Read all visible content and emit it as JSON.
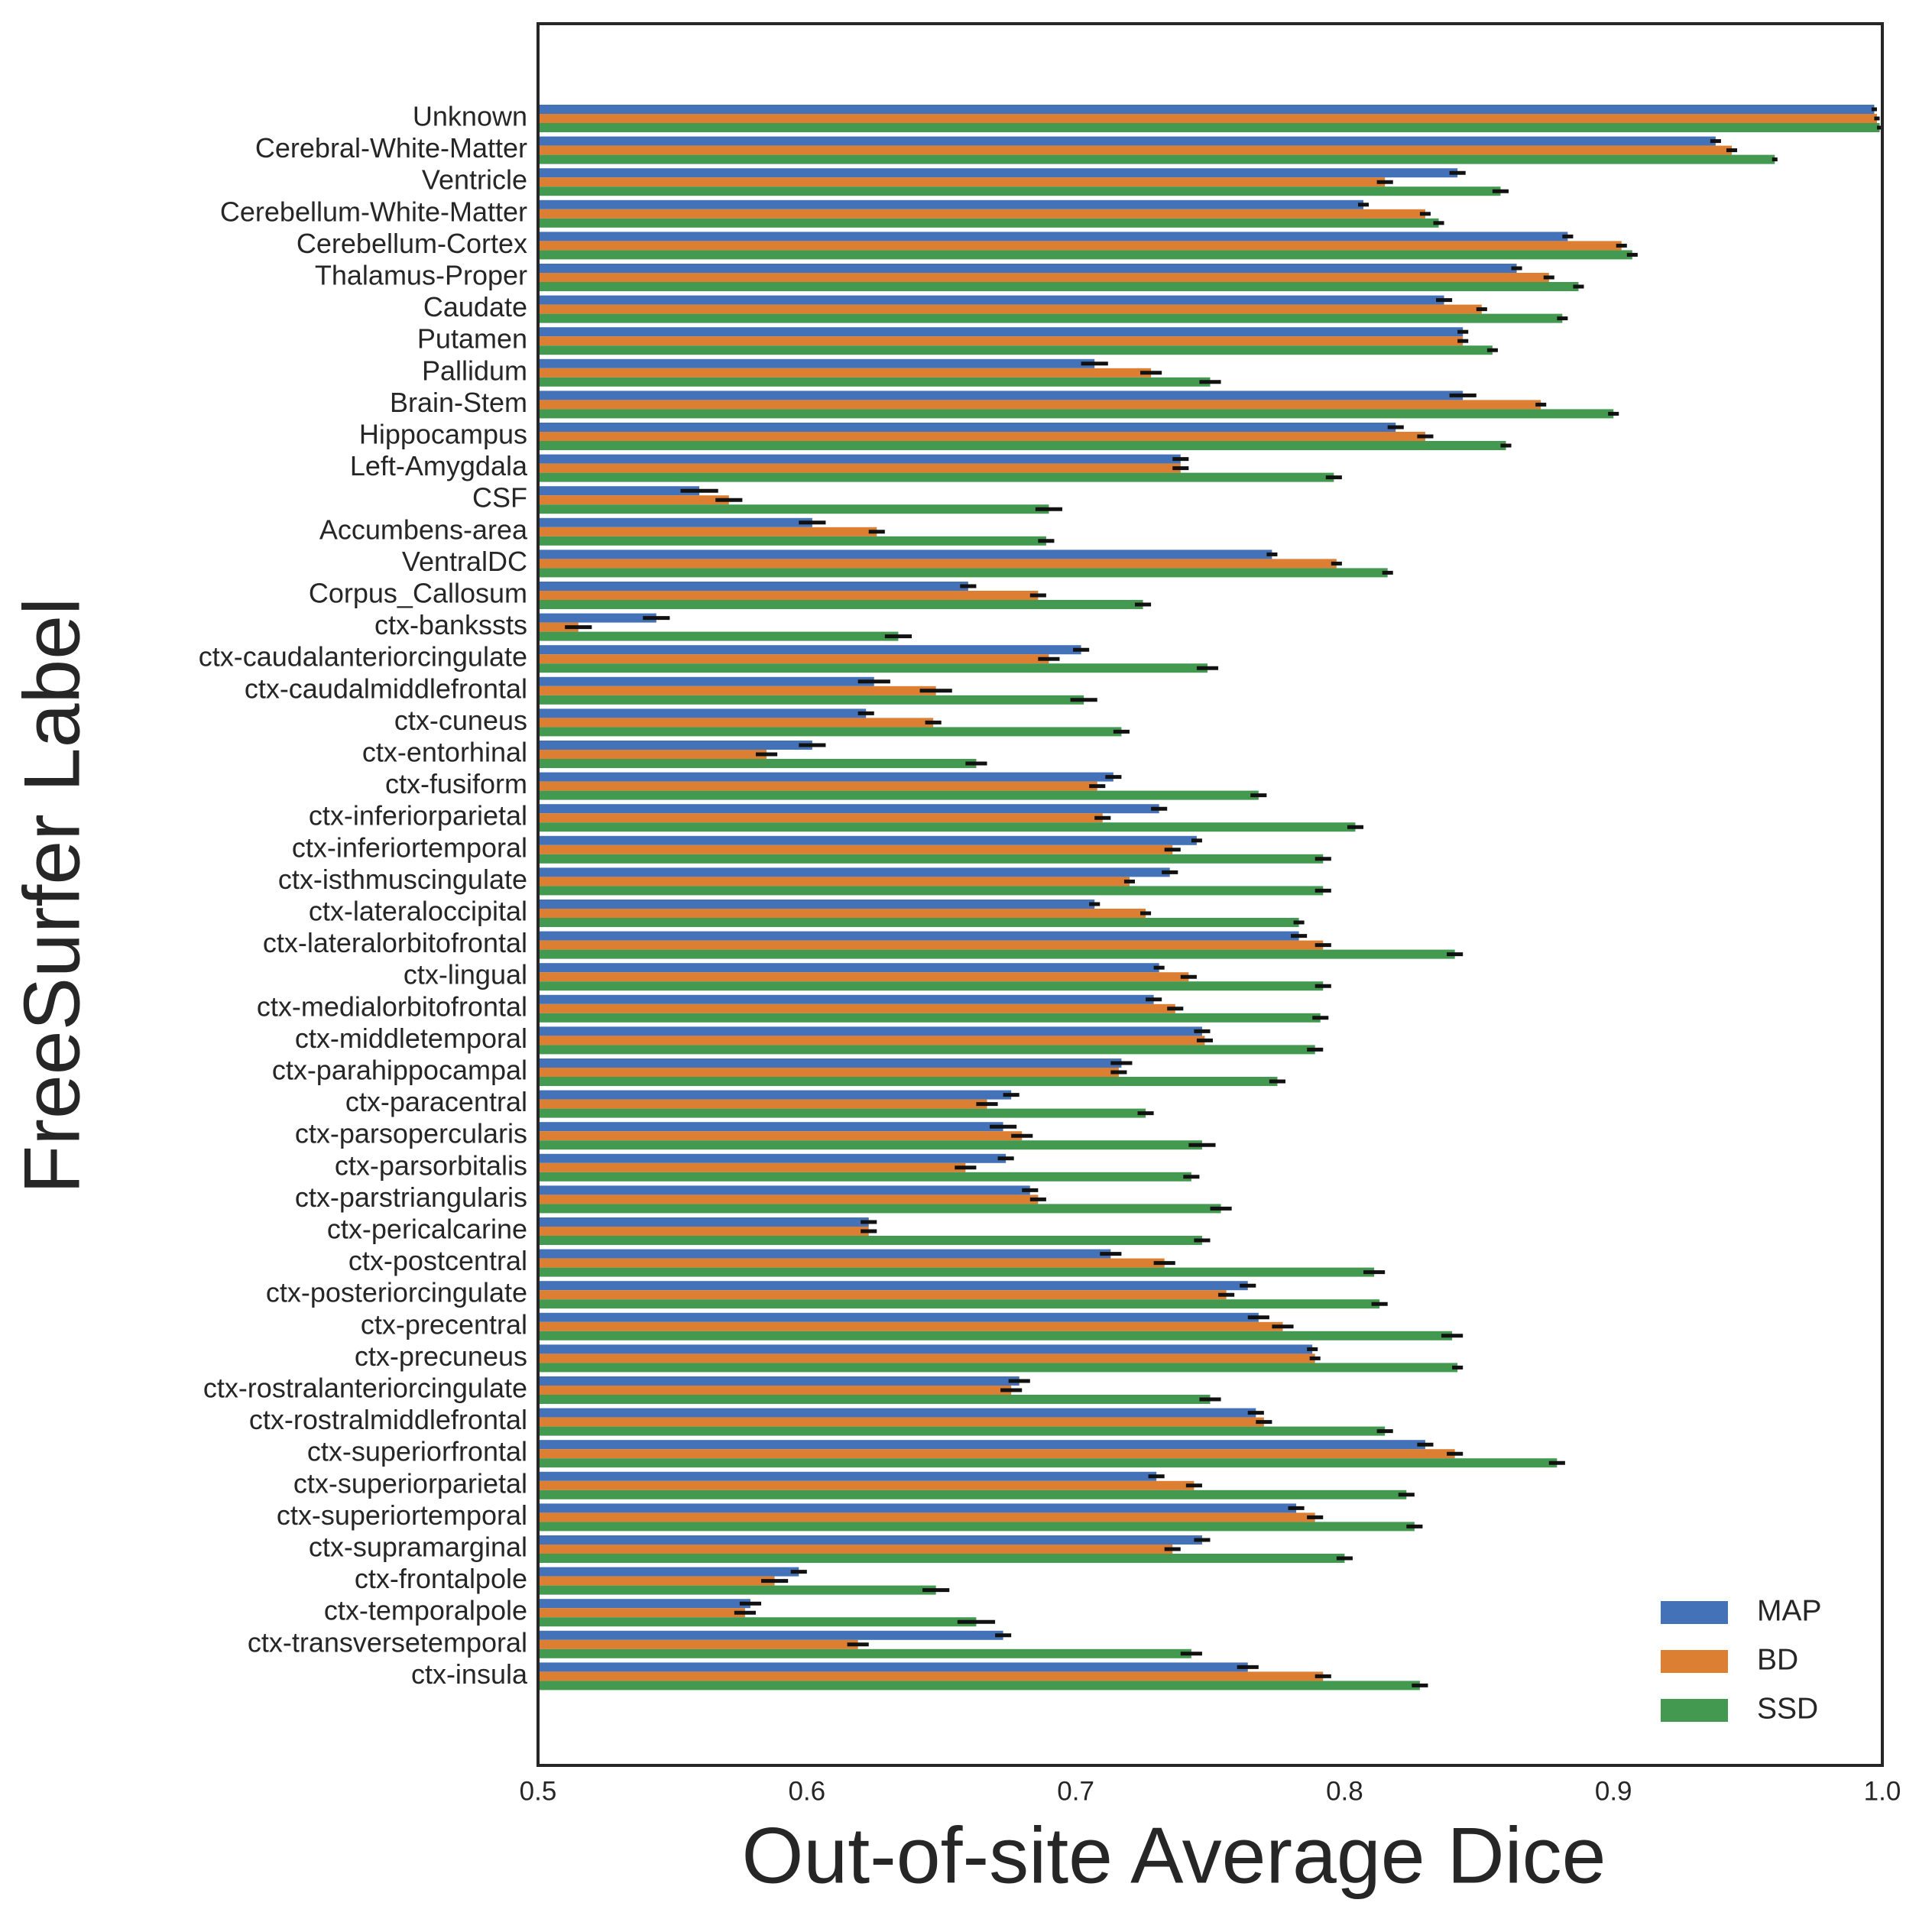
{
  "chart_data": {
    "type": "hbar",
    "xlabel": "Out-of-site Average Dice",
    "ylabel": "FreeSurfer Label",
    "xlim": [
      0.5,
      1.0
    ],
    "xticks": [
      0.5,
      0.6,
      0.7,
      0.8,
      0.9,
      {
        "value": 1.0,
        "label": "1.0"
      }
    ],
    "legend": "lower right",
    "categories": [
      "Unknown",
      "Cerebral-White-Matter",
      "Ventricle",
      "Cerebellum-White-Matter",
      "Cerebellum-Cortex",
      "Thalamus-Proper",
      "Caudate",
      "Putamen",
      "Pallidum",
      "Brain-Stem",
      "Hippocampus",
      "Left-Amygdala",
      "CSF",
      "Accumbens-area",
      "VentralDC",
      "Corpus_Callosum",
      "ctx-bankssts",
      "ctx-caudalanteriorcingulate",
      "ctx-caudalmiddlefrontal",
      "ctx-cuneus",
      "ctx-entorhinal",
      "ctx-fusiform",
      "ctx-inferiorparietal",
      "ctx-inferiortemporal",
      "ctx-isthmuscingulate",
      "ctx-lateraloccipital",
      "ctx-lateralorbitofrontal",
      "ctx-lingual",
      "ctx-medialorbitofrontal",
      "ctx-middletemporal",
      "ctx-parahippocampal",
      "ctx-paracentral",
      "ctx-parsopercularis",
      "ctx-parsorbitalis",
      "ctx-parstriangularis",
      "ctx-pericalcarine",
      "ctx-postcentral",
      "ctx-posteriorcingulate",
      "ctx-precentral",
      "ctx-precuneus",
      "ctx-rostralanteriorcingulate",
      "ctx-rostralmiddlefrontal",
      "ctx-superiorfrontal",
      "ctx-superiorparietal",
      "ctx-superiortemporal",
      "ctx-supramarginal",
      "ctx-frontalpole",
      "ctx-temporalpole",
      "ctx-transversetemporal",
      "ctx-insula"
    ],
    "series": [
      {
        "name": "MAP",
        "color": "#4472b8",
        "values": [
          0.997,
          0.938,
          0.842,
          0.807,
          0.883,
          0.864,
          0.837,
          0.844,
          0.707,
          0.844,
          0.819,
          0.739,
          0.56,
          0.602,
          0.773,
          0.66,
          0.544,
          0.702,
          0.625,
          0.622,
          0.602,
          0.714,
          0.731,
          0.745,
          0.735,
          0.707,
          0.783,
          0.731,
          0.729,
          0.747,
          0.717,
          0.676,
          0.673,
          0.674,
          0.683,
          0.623,
          0.713,
          0.764,
          0.768,
          0.788,
          0.679,
          0.767,
          0.83,
          0.73,
          0.782,
          0.747,
          0.597,
          0.579,
          0.673,
          0.764
        ],
        "errors": [
          0.001,
          0.002,
          0.003,
          0.002,
          0.002,
          0.002,
          0.003,
          0.002,
          0.005,
          0.005,
          0.003,
          0.003,
          0.007,
          0.005,
          0.002,
          0.003,
          0.005,
          0.003,
          0.006,
          0.003,
          0.005,
          0.003,
          0.003,
          0.002,
          0.003,
          0.002,
          0.003,
          0.002,
          0.003,
          0.003,
          0.004,
          0.003,
          0.005,
          0.003,
          0.003,
          0.003,
          0.004,
          0.003,
          0.004,
          0.002,
          0.004,
          0.003,
          0.003,
          0.003,
          0.003,
          0.003,
          0.003,
          0.004,
          0.003,
          0.004
        ]
      },
      {
        "name": "BD",
        "color": "#dd7f32",
        "values": [
          0.998,
          0.944,
          0.815,
          0.83,
          0.903,
          0.876,
          0.851,
          0.844,
          0.728,
          0.873,
          0.83,
          0.739,
          0.571,
          0.626,
          0.797,
          0.686,
          0.515,
          0.69,
          0.648,
          0.647,
          0.585,
          0.708,
          0.71,
          0.736,
          0.72,
          0.726,
          0.792,
          0.742,
          0.737,
          0.748,
          0.716,
          0.667,
          0.68,
          0.659,
          0.686,
          0.623,
          0.733,
          0.756,
          0.777,
          0.789,
          0.676,
          0.77,
          0.841,
          0.744,
          0.789,
          0.736,
          0.588,
          0.577,
          0.619,
          0.792
        ],
        "errors": [
          0.001,
          0.002,
          0.003,
          0.002,
          0.002,
          0.002,
          0.002,
          0.002,
          0.004,
          0.002,
          0.003,
          0.003,
          0.005,
          0.003,
          0.002,
          0.003,
          0.005,
          0.004,
          0.006,
          0.003,
          0.004,
          0.003,
          0.003,
          0.003,
          0.002,
          0.002,
          0.003,
          0.003,
          0.003,
          0.003,
          0.003,
          0.004,
          0.004,
          0.004,
          0.003,
          0.003,
          0.004,
          0.003,
          0.004,
          0.002,
          0.004,
          0.003,
          0.003,
          0.003,
          0.003,
          0.003,
          0.005,
          0.004,
          0.004,
          0.003
        ]
      },
      {
        "name": "SSD",
        "color": "#43994f",
        "values": [
          0.999,
          0.96,
          0.858,
          0.835,
          0.907,
          0.887,
          0.881,
          0.855,
          0.75,
          0.9,
          0.86,
          0.796,
          0.69,
          0.689,
          0.816,
          0.725,
          0.634,
          0.749,
          0.703,
          0.717,
          0.663,
          0.768,
          0.804,
          0.792,
          0.792,
          0.783,
          0.841,
          0.792,
          0.791,
          0.789,
          0.775,
          0.726,
          0.747,
          0.743,
          0.754,
          0.747,
          0.811,
          0.813,
          0.84,
          0.842,
          0.75,
          0.815,
          0.879,
          0.823,
          0.826,
          0.8,
          0.648,
          0.663,
          0.743,
          0.828
        ],
        "errors": [
          0.001,
          0.001,
          0.003,
          0.002,
          0.002,
          0.002,
          0.002,
          0.002,
          0.004,
          0.002,
          0.002,
          0.003,
          0.005,
          0.003,
          0.002,
          0.003,
          0.005,
          0.004,
          0.005,
          0.003,
          0.004,
          0.003,
          0.003,
          0.003,
          0.003,
          0.002,
          0.003,
          0.003,
          0.003,
          0.003,
          0.003,
          0.003,
          0.005,
          0.003,
          0.004,
          0.003,
          0.004,
          0.003,
          0.004,
          0.002,
          0.004,
          0.003,
          0.003,
          0.003,
          0.003,
          0.003,
          0.005,
          0.007,
          0.004,
          0.003
        ]
      }
    ]
  }
}
